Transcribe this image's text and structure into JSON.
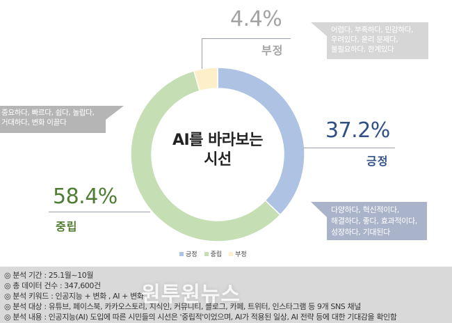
{
  "colors": {
    "positive": "#aec3e3",
    "neutral": "#c5deb4",
    "negative": "#fdefc9",
    "positive_text": "#2f4f86",
    "neutral_text": "#4f7d34",
    "negative_text": "#a3a3a3",
    "callout_positive": "#a9b3c9",
    "callout_neutral": "#b5b5b5",
    "callout_negative": "#d6d6d6",
    "footer_bg": "#d9d9d9"
  },
  "center_title": {
    "line1": "AI를 바라보는",
    "line2": "시선"
  },
  "labels": {
    "negative": {
      "pct": "4.4%",
      "name": "부정"
    },
    "positive": {
      "pct": "37.2%",
      "name": "긍정"
    },
    "neutral": {
      "pct": "58.4%",
      "name": "중립"
    }
  },
  "callouts": {
    "negative": [
      "어렵다, 부족하다, 민감하다,",
      "우려있다, 윤리 문제다,",
      "불필요하다, 한계있다"
    ],
    "neutral": [
      "중요하다, 빠르다, 쉽다, 놀랍다,",
      "거대하다, 변화 이끌다"
    ],
    "positive": [
      "다양하다, 혁신적이다,",
      "해결하다, 좋다, 효과적이다,",
      "성장하다, 기대된다"
    ]
  },
  "legend": [
    {
      "label": "긍정",
      "color": "#aec3e3"
    },
    {
      "label": "중립",
      "color": "#c5deb4"
    },
    {
      "label": "부정",
      "color": "#fdefc9"
    }
  ],
  "footer": {
    "lines": [
      "◎ 분석 기간 : 25.1월~10월",
      "◎ 총 데이터 건수 : 347,600건",
      "◎ 분석 키워드 : 인공지능 + 변화 , AI + 변화",
      "◎ 분석 대상 : 유튜브, 페이스북, 카카오스토리, 지식인, 커뮤니티, 블로그, 카페, 트위터, 인스타그램 등 9개 SNS 채널",
      "◎ 분석 내용 : 인공지능(AI) 도입에 따른 시민들의 시선은 '중립적'이었으며, AI가 적용된 일상, AI 전략 등에 대한 기대감을 확인함"
    ],
    "watermark": "원투원뉴스"
  },
  "chart_data": {
    "type": "pie",
    "subtype": "donut",
    "title": "AI를 바라보는 시선",
    "categories": [
      "긍정",
      "중립",
      "부정"
    ],
    "values": [
      37.2,
      58.4,
      4.4
    ],
    "unit": "%",
    "colors": [
      "#aec3e3",
      "#c5deb4",
      "#fdefc9"
    ],
    "start_angle": "12 o'clock, clockwise",
    "legend_position": "bottom",
    "annotations": {
      "긍정": "다양하다, 혁신적이다, 해결하다, 좋다, 효과적이다, 성장하다, 기대된다",
      "중립": "중요하다, 빠르다, 쉽다, 놀랍다, 거대하다, 변화 이끌다",
      "부정": "어렵다, 부족하다, 민감하다, 우려있다, 윤리 문제다, 불필요하다, 한계있다"
    }
  }
}
